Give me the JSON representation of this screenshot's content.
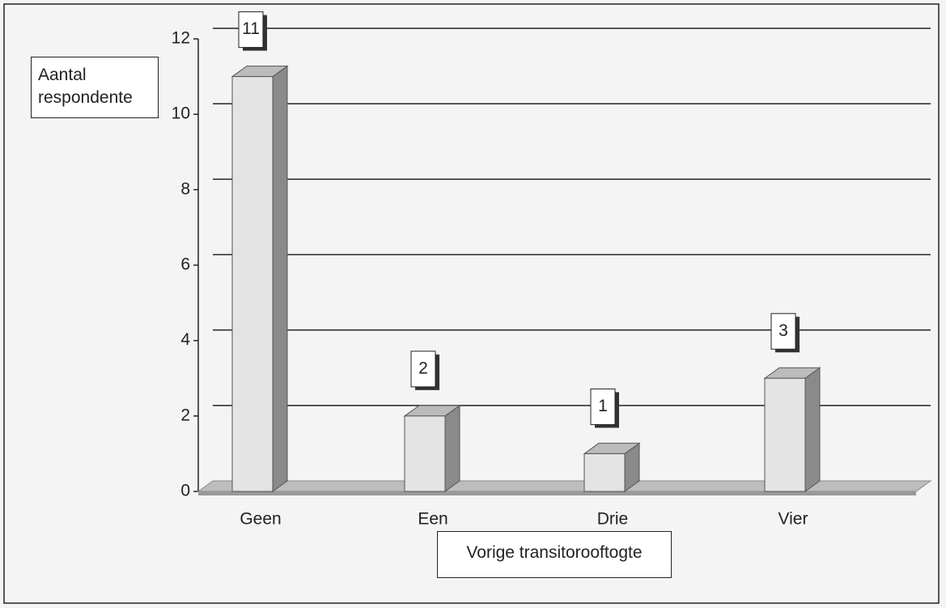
{
  "chart_data": {
    "type": "bar",
    "ylabel": "Aantal respondente",
    "xlabel": "Vorige transitorooftogte",
    "categories": [
      "Geen",
      "Een",
      "Drie",
      "Vier"
    ],
    "values": [
      11,
      2,
      1,
      3
    ],
    "color": "#e4e4e4",
    "ylim": [
      0,
      12
    ],
    "yticks": [
      0,
      2,
      4,
      6,
      8,
      10,
      12
    ],
    "grid": true
  }
}
